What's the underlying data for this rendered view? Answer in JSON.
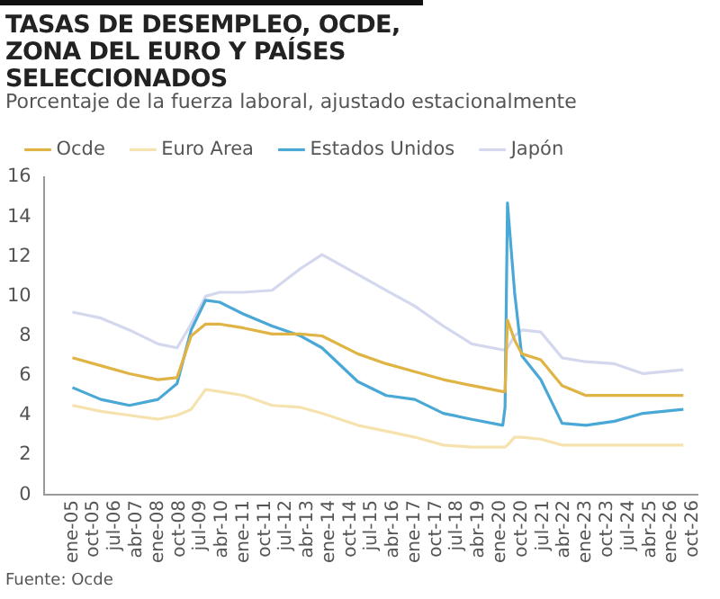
{
  "chart_data": {
    "type": "line",
    "title": "TASAS DE DESEMPLEO, OCDE, ZONA DEL EURO Y PAÍSES SELECCIONADOS",
    "subtitle": "Porcentaje de la fuerza laboral, ajustado estacionalmente",
    "x": [
      "2005-01",
      "2006-01",
      "2007-01",
      "2008-01",
      "2008-09",
      "2009-03",
      "2009-09",
      "2010-03",
      "2011-01",
      "2012-01",
      "2013-01",
      "2013-10",
      "2015-01",
      "2016-01",
      "2017-01",
      "2018-01",
      "2019-01",
      "2020-02",
      "2020-03",
      "2020-04",
      "2020-07",
      "2020-10",
      "2021-06",
      "2022-03",
      "2023-01",
      "2024-01",
      "2025-01",
      "2026-06"
    ],
    "series": [
      {
        "name": "Ocde",
        "color": "#e0b444",
        "values": [
          6.9,
          6.5,
          6.1,
          5.8,
          5.9,
          8.0,
          8.6,
          8.6,
          8.4,
          8.1,
          8.1,
          8.0,
          7.1,
          6.6,
          6.2,
          5.8,
          5.5,
          5.2,
          5.2,
          8.8,
          7.8,
          7.1,
          6.8,
          5.5,
          5.0,
          5.0,
          5.0,
          5.0
        ]
      },
      {
        "name": "Euro Area",
        "color": "#f6e2ae",
        "values": [
          4.5,
          4.2,
          4.0,
          3.8,
          4.0,
          4.3,
          5.3,
          5.2,
          5.0,
          4.5,
          4.4,
          4.1,
          3.5,
          3.2,
          2.9,
          2.5,
          2.4,
          2.4,
          2.4,
          2.5,
          2.9,
          2.9,
          2.8,
          2.5,
          2.5,
          2.5,
          2.5,
          2.5
        ]
      },
      {
        "name": "Estados Unidos",
        "color": "#4aa8d6",
        "values": [
          5.4,
          4.8,
          4.5,
          4.8,
          5.6,
          8.3,
          9.8,
          9.7,
          9.1,
          8.5,
          8.0,
          7.4,
          5.7,
          5.0,
          4.8,
          4.1,
          3.8,
          3.5,
          4.4,
          14.7,
          10.2,
          7.0,
          5.8,
          3.6,
          3.5,
          3.7,
          4.1,
          4.3
        ]
      },
      {
        "name": "Japón",
        "color": "#d4d8ee",
        "values": [
          9.2,
          8.9,
          8.3,
          7.6,
          7.4,
          8.6,
          10.0,
          10.2,
          10.2,
          10.3,
          11.4,
          12.1,
          11.1,
          10.3,
          9.5,
          8.5,
          7.6,
          7.3,
          7.3,
          7.4,
          8.0,
          8.3,
          8.2,
          6.9,
          6.7,
          6.6,
          6.1,
          6.3
        ]
      }
    ],
    "xlim": [
      "2004-01",
      "2026-12"
    ],
    "xticks": [
      {
        "value": "2005-01",
        "label": "ene-05"
      },
      {
        "value": "2005-10",
        "label": "oct-05"
      },
      {
        "value": "2006-07",
        "label": "jul-06"
      },
      {
        "value": "2007-04",
        "label": "abr-07"
      },
      {
        "value": "2008-01",
        "label": "ene-08"
      },
      {
        "value": "2008-10",
        "label": "oct-08"
      },
      {
        "value": "2009-07",
        "label": "jul-09"
      },
      {
        "value": "2010-04",
        "label": "abr-10"
      },
      {
        "value": "2011-01",
        "label": "ene-11"
      },
      {
        "value": "2011-10",
        "label": "oct-11"
      },
      {
        "value": "2012-07",
        "label": "jul-12"
      },
      {
        "value": "2013-04",
        "label": "abr-13"
      },
      {
        "value": "2014-01",
        "label": "ene-14"
      },
      {
        "value": "2014-10",
        "label": "oct-14"
      },
      {
        "value": "2015-07",
        "label": "jul-15"
      },
      {
        "value": "2016-04",
        "label": "abr-16"
      },
      {
        "value": "2017-01",
        "label": "ene-17"
      },
      {
        "value": "2017-10",
        "label": "oct-17"
      },
      {
        "value": "2018-07",
        "label": "jul-18"
      },
      {
        "value": "2019-04",
        "label": "abr-19"
      },
      {
        "value": "2020-01",
        "label": "ene-20"
      },
      {
        "value": "2020-10",
        "label": "oct-20"
      },
      {
        "value": "2021-07",
        "label": "jul-21"
      },
      {
        "value": "2022-04",
        "label": "abr-22"
      },
      {
        "value": "2023-01",
        "label": "ene-23"
      },
      {
        "value": "2023-10",
        "label": "oct-23"
      },
      {
        "value": "2024-07",
        "label": "jul-24"
      },
      {
        "value": "2025-04",
        "label": "abr-25"
      },
      {
        "value": "2026-01",
        "label": "ene-26"
      },
      {
        "value": "2026-10",
        "label": "oct-26"
      }
    ],
    "ylim": [
      0,
      16
    ],
    "yticks": [
      0,
      2,
      4,
      6,
      8,
      10,
      12,
      14,
      16
    ],
    "grid": false,
    "legend": "top left",
    "marker": "none",
    "line_style": "solid",
    "annotations": [
      "Fuente: Ocde"
    ]
  }
}
